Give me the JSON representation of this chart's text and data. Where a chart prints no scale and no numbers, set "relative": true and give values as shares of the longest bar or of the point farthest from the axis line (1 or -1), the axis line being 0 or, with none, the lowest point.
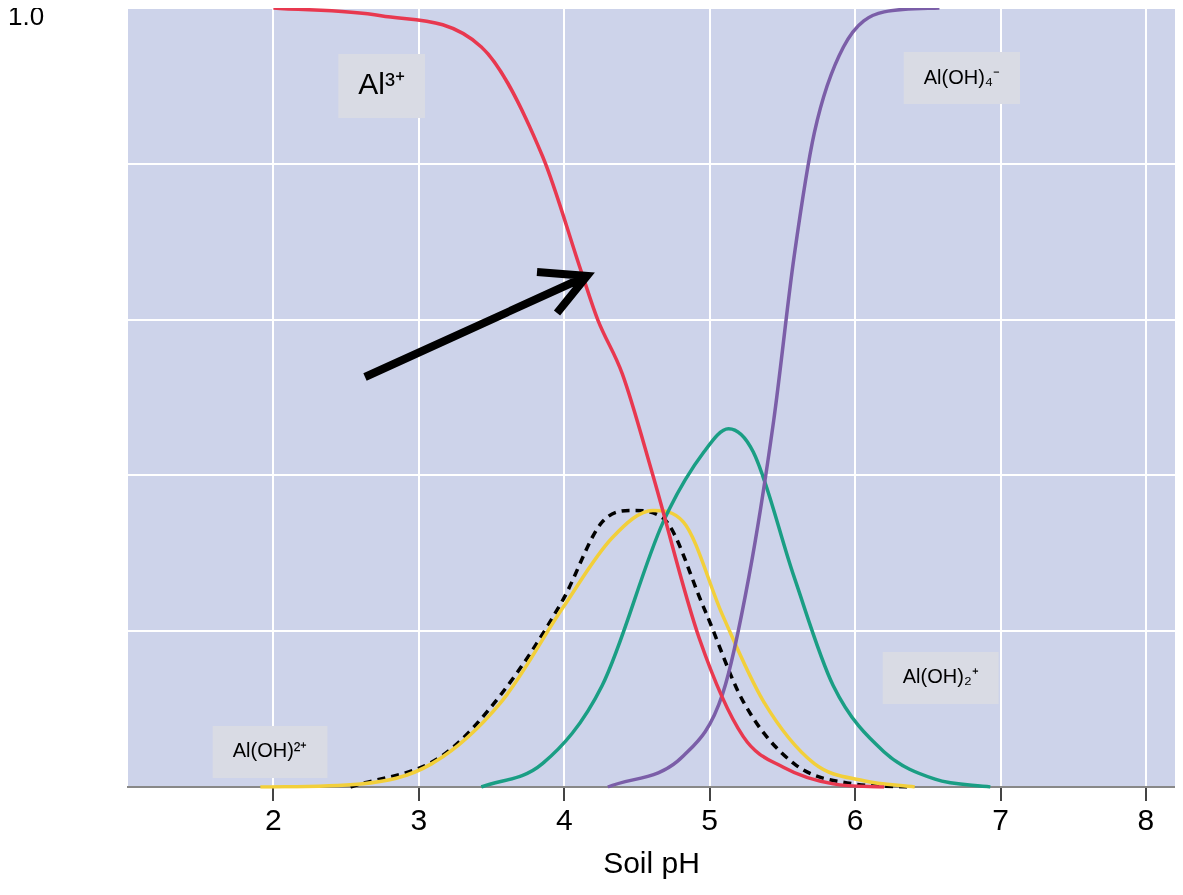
{
  "chart_data": {
    "type": "line",
    "xlabel": "Soil pH",
    "relative": true,
    "xlim": [
      1,
      8.2
    ],
    "xticks": [
      2,
      3,
      4,
      5,
      6,
      7,
      8
    ],
    "grid": true,
    "legend": false,
    "marker": "none",
    "annotations": [
      "1.0"
    ],
    "series": [
      {
        "name": "Al³⁺",
        "color": "#e8384f",
        "x": [
          2,
          2.74,
          3.43,
          3.85,
          4.12,
          4.23,
          4.4,
          4.61,
          4.93,
          5.23,
          5.51,
          5.85,
          6.2
        ],
        "values": [
          1.0,
          0.99,
          0.95,
          0.81,
          0.66,
          0.6,
          0.53,
          0.4,
          0.19,
          0.065,
          0.025,
          0.004,
          0
        ]
      },
      {
        "name": "Al(OH)₄⁻",
        "color": "#7b5ea8",
        "x": [
          4.3,
          4.82,
          5.09,
          5.27,
          5.44,
          5.58,
          5.72,
          5.92,
          6.2,
          6.58
        ],
        "values": [
          0,
          0.04,
          0.12,
          0.27,
          0.47,
          0.68,
          0.84,
          0.95,
          0.995,
          1.0
        ]
      },
      {
        "name": "Al(OH)₂⁺",
        "color": "#1a9e84",
        "x": [
          3.43,
          3.85,
          4.26,
          4.68,
          4.96,
          5.13,
          5.3,
          5.58,
          5.85,
          6.2,
          6.55,
          6.93
        ],
        "values": [
          0,
          0.03,
          0.13,
          0.34,
          0.43,
          0.46,
          0.43,
          0.27,
          0.13,
          0.045,
          0.01,
          0
        ]
      },
      {
        "name": "Al(OH)²⁺",
        "color": "#f2cf3a",
        "x": [
          1.91,
          2.6,
          3.09,
          3.57,
          3.99,
          4.33,
          4.61,
          4.82,
          5.09,
          5.37,
          5.72,
          6.06,
          6.41
        ],
        "values": [
          0,
          0.004,
          0.03,
          0.11,
          0.23,
          0.32,
          0.355,
          0.34,
          0.22,
          0.11,
          0.03,
          0.008,
          0
        ]
      },
      {
        "color": "#000000",
        "line_style": "dashed",
        "x": [
          2.53,
          3.16,
          3.57,
          3.99,
          4.26,
          4.47,
          4.68,
          4.96,
          5.23,
          5.58,
          5.99,
          6.37
        ],
        "values": [
          0,
          0.04,
          0.12,
          0.24,
          0.34,
          0.355,
          0.345,
          0.23,
          0.11,
          0.03,
          0.004,
          0
        ]
      }
    ]
  }
}
